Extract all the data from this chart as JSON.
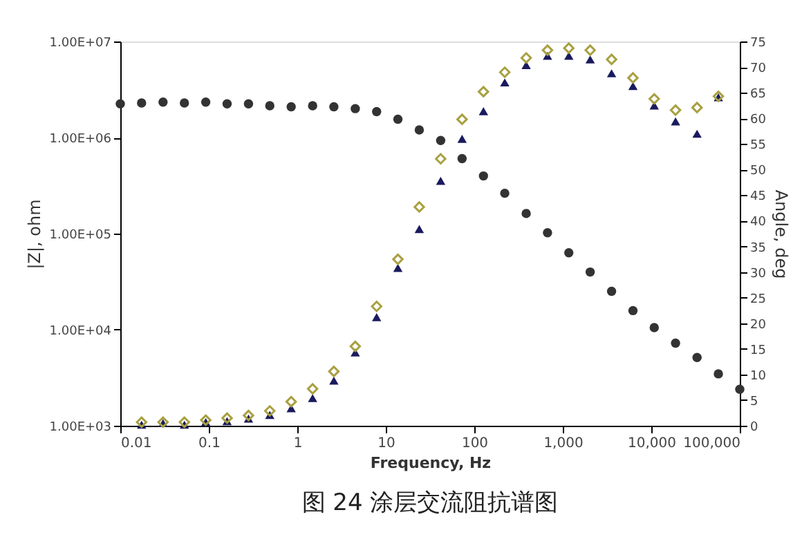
{
  "chart_data": {
    "type": "scatter",
    "title": "图 24 涂层交流阻抗谱图",
    "xlabel": "Frequency, Hz",
    "ylabel": "|Z|, ohm",
    "y2label": "Angle, deg",
    "x": [
      0.01,
      0.0174,
      0.0304,
      0.053,
      0.0924,
      0.161,
      0.281,
      0.489,
      0.853,
      1.49,
      2.59,
      4.52,
      7.88,
      13.7,
      23.9,
      41.7,
      72.8,
      127,
      221,
      386,
      672,
      1170,
      2040,
      3560,
      6210,
      10800,
      18800,
      32900,
      57300,
      100000
    ],
    "series": [
      {
        "color": "#333333",
        "marker": "circle",
        "values": [
          2240000,
          2290000,
          2340000,
          2290000,
          2340000,
          2240000,
          2240000,
          2140000,
          2090000,
          2140000,
          2090000,
          2000000,
          1860000,
          1550000,
          1200000,
          933000,
          603000,
          398000,
          263000,
          162000,
          102000,
          63100,
          39800,
          25100,
          15800,
          10500,
          7240,
          5130,
          3470,
          2400
        ]
      },
      {
        "color": "#1a1a5e",
        "marker": "triangle",
        "axis": "y2",
        "values": [
          null,
          0.2,
          0.5,
          0.2,
          0.7,
          0.9,
          1.4,
          2.1,
          3.4,
          5.4,
          8.8,
          14.3,
          21.2,
          30.8,
          38.4,
          47.8,
          56.0,
          61.4,
          67.0,
          70.4,
          72.2,
          72.2,
          71.5,
          68.8,
          66.3,
          62.5,
          59.4,
          57.0,
          64.1,
          null
        ]
      },
      {
        "color": "#a8a040",
        "marker": "diamond",
        "axis": "y2",
        "values": [
          null,
          0.7,
          0.7,
          0.7,
          1.1,
          1.5,
          2.0,
          2.9,
          4.7,
          7.2,
          10.6,
          15.5,
          23.3,
          32.5,
          42.7,
          52.1,
          59.8,
          65.2,
          69.0,
          71.8,
          73.3,
          73.7,
          73.3,
          71.5,
          67.9,
          63.8,
          61.6,
          62.1,
          64.3,
          null
        ]
      }
    ],
    "log": "xy",
    "grid": false,
    "xlim": [
      0.01,
      100000
    ],
    "xticks": [
      0.01,
      0.1,
      1,
      10,
      100,
      {
        "value": 1000,
        "label": "1,000"
      },
      {
        "value": 10000,
        "label": "10,000"
      },
      {
        "value": 100000,
        "label": "100,000"
      }
    ],
    "ylim": [
      1000,
      10000000
    ],
    "yticks": [
      {
        "value": 1000,
        "label": "1.00E+03"
      },
      {
        "value": 10000,
        "label": "1.00E+04"
      },
      {
        "value": 100000,
        "label": "1.00E+05"
      },
      {
        "value": 1000000,
        "label": "1.00E+06"
      },
      {
        "value": 10000000,
        "label": "1.00E+07"
      }
    ],
    "y2lim": [
      0,
      75
    ],
    "y2ticks": [
      0,
      5,
      10,
      15,
      20,
      25,
      30,
      35,
      40,
      45,
      50,
      55,
      60,
      65,
      70,
      75
    ]
  }
}
